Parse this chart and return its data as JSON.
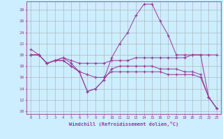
{
  "xlabel": "Windchill (Refroidissement éolien,°C)",
  "background_color": "#cceeff",
  "grid_color": "#aaaaaa",
  "line_color": "#993399",
  "xmin": -0.5,
  "xmax": 23.5,
  "ymin": 9.5,
  "ymax": 29.5,
  "yticks": [
    10,
    12,
    14,
    16,
    18,
    20,
    22,
    24,
    26,
    28
  ],
  "xticks": [
    0,
    1,
    2,
    3,
    4,
    5,
    6,
    7,
    8,
    9,
    10,
    11,
    12,
    13,
    14,
    15,
    16,
    17,
    18,
    19,
    20,
    21,
    22,
    23
  ],
  "lines": [
    {
      "x": [
        0,
        1,
        2,
        3,
        4,
        5,
        6,
        7,
        8,
        9,
        10,
        11,
        12,
        13,
        14,
        15,
        16,
        17,
        18,
        19,
        20,
        21,
        22,
        23
      ],
      "y": [
        21,
        20,
        18.5,
        19,
        19,
        18,
        17,
        13.5,
        14,
        15.5,
        19.5,
        22,
        24,
        27,
        29,
        29,
        26,
        23.5,
        20,
        20,
        20,
        20,
        12.5,
        10.5
      ]
    },
    {
      "x": [
        0,
        1,
        2,
        3,
        4,
        5,
        6,
        7,
        8,
        9,
        10,
        11,
        12,
        13,
        14,
        15,
        16,
        17,
        18,
        19,
        20,
        21,
        22,
        23
      ],
      "y": [
        20,
        20,
        18.5,
        19,
        19.5,
        19,
        18.5,
        18.5,
        18.5,
        18.5,
        19,
        19,
        19,
        19.5,
        19.5,
        19.5,
        19.5,
        19.5,
        19.5,
        19.5,
        20,
        20,
        20,
        20
      ]
    },
    {
      "x": [
        0,
        1,
        2,
        3,
        4,
        5,
        6,
        7,
        8,
        9,
        10,
        11,
        12,
        13,
        14,
        15,
        16,
        17,
        18,
        19,
        20,
        21,
        22,
        23
      ],
      "y": [
        20,
        20,
        18.5,
        19,
        19.5,
        18.5,
        17,
        16.5,
        16,
        16,
        17,
        17,
        17,
        17,
        17,
        17,
        17,
        16.5,
        16.5,
        16.5,
        16.5,
        16,
        12.5,
        10.5
      ]
    },
    {
      "x": [
        0,
        1,
        2,
        3,
        4,
        5,
        6,
        7,
        8,
        9,
        10,
        11,
        12,
        13,
        14,
        15,
        16,
        17,
        18,
        19,
        20,
        21,
        22,
        23
      ],
      "y": [
        20,
        20,
        18.5,
        19,
        19,
        18,
        17,
        13.5,
        14,
        15.5,
        17.5,
        18,
        18,
        18,
        18,
        18,
        17.5,
        17.5,
        17.5,
        17,
        17,
        16.5,
        12.5,
        10.5
      ]
    }
  ]
}
